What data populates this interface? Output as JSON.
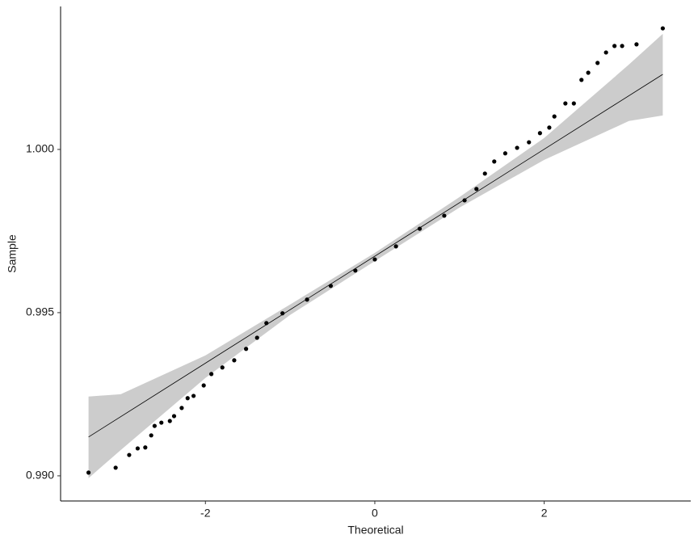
{
  "chart_data": {
    "type": "qq",
    "x_label": "Theoretical",
    "y_label": "Sample",
    "xlim": [
      -3.71,
      3.73
    ],
    "ylim": [
      0.98923,
      1.00438
    ],
    "xticks": [
      -2,
      0,
      2
    ],
    "yticks": [
      {
        "value": 0.99,
        "label": "0.990"
      },
      {
        "value": 0.995,
        "label": "0.995"
      },
      {
        "value": 1.0,
        "label": "1.000"
      }
    ],
    "grid": false,
    "points": {
      "color": "#000000",
      "x": [
        -3.38,
        -3.06,
        -2.9,
        -2.8,
        -2.71,
        -2.64,
        -2.6,
        -2.52,
        -2.42,
        -2.37,
        -2.28,
        -2.21,
        -2.14,
        -2.02,
        -1.93,
        -1.8,
        -1.66,
        -1.52,
        -1.39,
        -1.28,
        -1.09,
        -0.8,
        -0.52,
        -0.23,
        0,
        0.25,
        0.53,
        0.82,
        1.06,
        1.2,
        1.3,
        1.41,
        1.54,
        1.68,
        1.82,
        1.95,
        2.06,
        2.12,
        2.25,
        2.35,
        2.44,
        2.52,
        2.63,
        2.73,
        2.83,
        2.92,
        3.09,
        3.4
      ],
      "y": [
        0.9901,
        0.99025,
        0.99064,
        0.99084,
        0.99087,
        0.99124,
        0.99153,
        0.99163,
        0.99168,
        0.99183,
        0.99208,
        0.99238,
        0.99245,
        0.99277,
        0.99312,
        0.99332,
        0.99354,
        0.99389,
        0.99423,
        0.99468,
        0.99498,
        0.9954,
        0.99582,
        0.99629,
        0.99663,
        0.99703,
        0.99757,
        0.99797,
        0.99844,
        0.99879,
        0.99926,
        0.99963,
        0.99988,
        1.00005,
        1.00022,
        1.0005,
        1.00067,
        1.00101,
        1.00141,
        1.00141,
        1.00213,
        1.00235,
        1.00265,
        1.00297,
        1.00317,
        1.00317,
        1.00322,
        1.00371
      ]
    },
    "reference_line": {
      "color": "#000000",
      "x": [
        -3.38,
        3.4
      ],
      "y": [
        0.99119,
        1.0023
      ]
    },
    "band": {
      "color": "#cccccc",
      "x": [
        -3.38,
        -3,
        -2,
        -1,
        0,
        1,
        2,
        3,
        3.4
      ],
      "lower": [
        0.98993,
        0.99079,
        0.993,
        0.99493,
        0.99658,
        0.99822,
        0.99968,
        1.00087,
        1.00104
      ],
      "upper": [
        0.99243,
        0.9925,
        0.99369,
        0.99525,
        0.99683,
        0.99854,
        1.00035,
        1.0026,
        1.00354
      ]
    }
  }
}
